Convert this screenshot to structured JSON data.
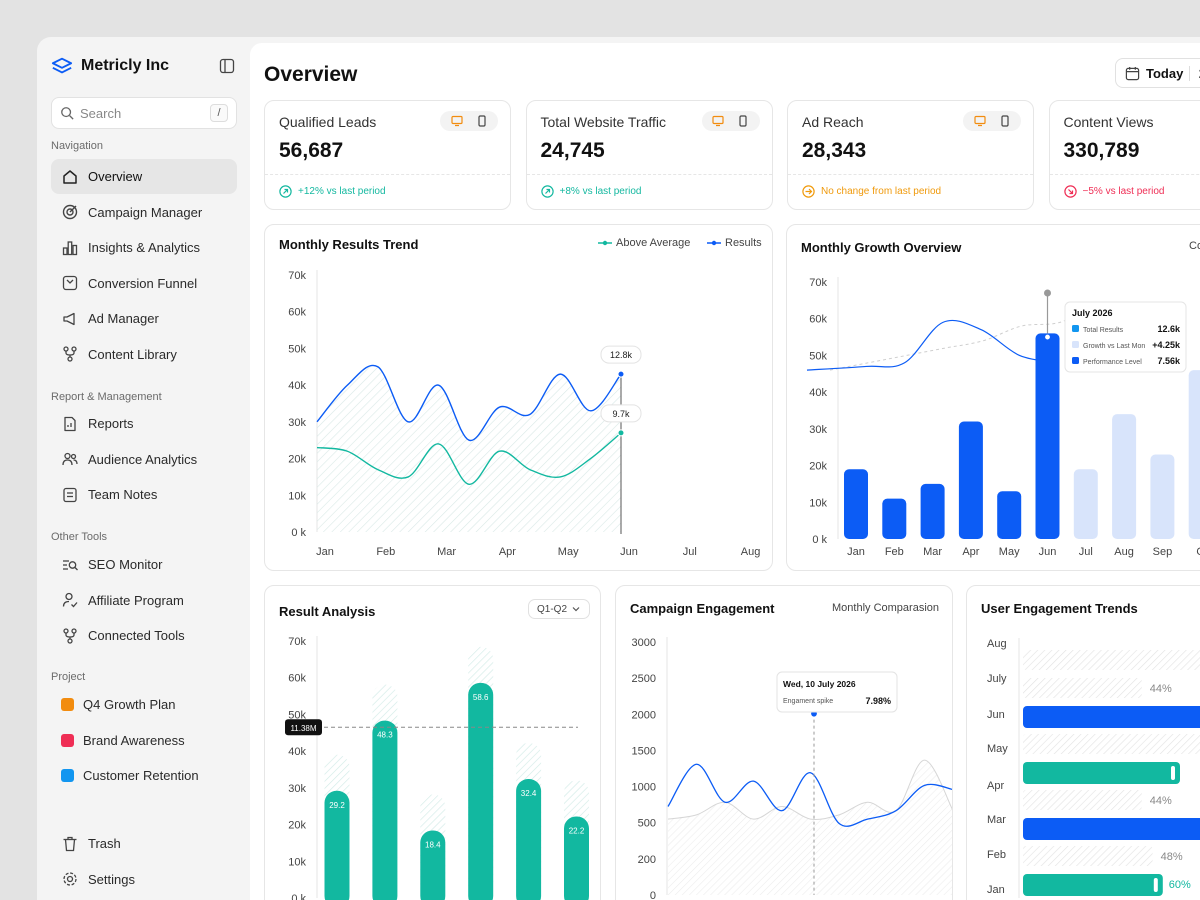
{
  "app": {
    "name": "Metricly Inc"
  },
  "search": {
    "placeholder": "Search",
    "shortcut": "/"
  },
  "sidebar": {
    "sections": {
      "navigation": "Navigation",
      "report": "Report & Management",
      "other": "Other Tools",
      "project": "Project"
    },
    "navigation": [
      {
        "label": "Overview",
        "icon": "home-icon",
        "active": true
      },
      {
        "label": "Campaign Manager",
        "icon": "target-icon"
      },
      {
        "label": "Insights & Analytics",
        "icon": "bar-chart-icon"
      },
      {
        "label": "Conversion Funnel",
        "icon": "funnel-icon"
      },
      {
        "label": "Ad Manager",
        "icon": "megaphone-icon"
      },
      {
        "label": "Content Library",
        "icon": "library-icon"
      }
    ],
    "report": [
      {
        "label": "Reports",
        "icon": "report-icon"
      },
      {
        "label": "Audience Analytics",
        "icon": "users-icon"
      },
      {
        "label": "Team Notes",
        "icon": "notes-icon"
      }
    ],
    "other": [
      {
        "label": "SEO Monitor",
        "icon": "seo-icon"
      },
      {
        "label": "Affiliate Program",
        "icon": "affiliate-icon"
      },
      {
        "label": "Connected Tools",
        "icon": "connect-icon"
      }
    ],
    "projects": [
      {
        "label": "Q4 Growth Plan",
        "color": "#f28c0f"
      },
      {
        "label": "Brand Awareness",
        "color": "#ef2e55"
      },
      {
        "label": "Customer Retention",
        "color": "#1296f0"
      }
    ],
    "bottom": [
      {
        "label": "Trash",
        "icon": "trash-icon"
      },
      {
        "label": "Settings",
        "icon": "gear-icon"
      }
    ]
  },
  "header": {
    "title": "Overview",
    "date_label": "Today",
    "date_extra": "2"
  },
  "kpis": [
    {
      "title": "Qualified Leads",
      "value": "56,687",
      "change": "+12% vs last period",
      "status": "up",
      "color": "#14b8a0"
    },
    {
      "title": "Total Website Traffic",
      "value": "24,745",
      "change": "+8% vs last period",
      "status": "up",
      "color": "#14b8a0"
    },
    {
      "title": "Ad Reach",
      "value": "28,343",
      "change": "No change from last period",
      "status": "flat",
      "color": "#f09a0c"
    },
    {
      "title": "Content Views",
      "value": "330,789",
      "change": "−5% vs last period",
      "status": "down",
      "color": "#ef2e55"
    }
  ],
  "colors": {
    "blue": "#0c5cf5",
    "light_blue": "#d8e4fb",
    "teal": "#12b8a0",
    "orange": "#f28c0f"
  },
  "chart_data": [
    {
      "id": "monthly-results-trend",
      "type": "line",
      "title": "Monthly Results Trend",
      "legend": [
        "Above Average",
        "Results"
      ],
      "categories": [
        "Jan",
        "Feb",
        "Mar",
        "Apr",
        "May",
        "Jun",
        "Jul",
        "Aug"
      ],
      "yticks": [
        "70k",
        "60k",
        "50k",
        "40k",
        "30k",
        "20k",
        "10k",
        "0 k"
      ],
      "ylim": [
        0,
        70000
      ],
      "series": [
        {
          "name": "Results",
          "x": [
            0,
            0.5,
            1,
            1.5,
            2,
            2.5,
            3,
            3.5,
            4,
            4.5,
            5
          ],
          "values": [
            30000,
            40000,
            45000,
            30000,
            40000,
            25000,
            34000,
            32000,
            43000,
            33000,
            43000
          ]
        },
        {
          "name": "Above Average",
          "x": [
            0,
            0.5,
            1,
            1.5,
            2,
            2.5,
            3,
            3.5,
            4,
            4.5,
            5
          ],
          "values": [
            23000,
            22000,
            17000,
            15000,
            24000,
            13000,
            22000,
            17000,
            15000,
            20000,
            27000
          ]
        }
      ],
      "annotations": [
        {
          "label": "12.8k",
          "series": "Results"
        },
        {
          "label": "9.7k",
          "series": "Above Average"
        }
      ]
    },
    {
      "id": "monthly-growth-overview",
      "type": "bar",
      "title": "Monthly Growth Overview",
      "extra_label": "Co",
      "categories": [
        "Jan",
        "Feb",
        "Mar",
        "Apr",
        "May",
        "Jun",
        "Jul",
        "Aug",
        "Sep",
        "Oct"
      ],
      "tick_labels": [
        "Jan",
        "Feb",
        "Mar",
        "Apr",
        "May",
        "Jun",
        "Jul",
        "Aug",
        "Sep",
        "O"
      ],
      "yticks": [
        "70k",
        "60k",
        "50k",
        "40k",
        "30k",
        "20k",
        "10k",
        "0 k"
      ],
      "ylim": [
        0,
        70000
      ],
      "values": [
        19000,
        11000,
        15000,
        32000,
        13000,
        56000,
        19000,
        34000,
        23000,
        46000
      ],
      "projected": [
        false,
        false,
        false,
        false,
        false,
        false,
        true,
        true,
        true,
        true
      ],
      "line_values": [
        46000,
        47000,
        48000,
        59000,
        57000,
        50000,
        48000
      ],
      "dashed_values": [
        46000,
        48000,
        50000,
        52000,
        54000,
        58000,
        59000,
        64000,
        62000,
        60000
      ],
      "tooltip": {
        "title": "July 2026",
        "rows": [
          {
            "label": "Total Results",
            "value": "12.6k",
            "color": "#1296f0"
          },
          {
            "label": "Growth vs Last Mon",
            "value": "+4.25k",
            "color": "#d8e4fb"
          },
          {
            "label": "Performance Level",
            "value": "7.56k",
            "color": "#0c5cf5"
          }
        ]
      }
    },
    {
      "id": "result-analysis",
      "type": "bar",
      "title": "Result Analysis",
      "filter": "Q1-Q2",
      "yticks": [
        "70k",
        "60k",
        "50k",
        "40k",
        "30k",
        "20k",
        "10k",
        "0 k"
      ],
      "ylim": [
        0,
        70000
      ],
      "values": [
        29.2,
        48.3,
        18.4,
        58.6,
        32.4,
        22.2
      ],
      "labels": [
        "29.2",
        "48.3",
        "18.4",
        "58.6",
        "32.4",
        "22.2"
      ],
      "reference": {
        "label": "11.38M",
        "value": 46500
      }
    },
    {
      "id": "campaign-engagement",
      "type": "line",
      "title": "Campaign Engagement",
      "subtitle": "Monthly Comparasion",
      "yticks": [
        "3000",
        "2500",
        "2000",
        "1500",
        "1000",
        "500",
        "200",
        "0"
      ],
      "ylim": [
        0,
        3000
      ],
      "values": [
        1050,
        1550,
        1100,
        1350,
        1000,
        1450,
        850,
        900,
        1000,
        1300,
        1250
      ],
      "tooltip": {
        "date": "Wed, 10 July 2026",
        "label": "Engament spike",
        "value": "7.98%"
      }
    },
    {
      "id": "user-engagement-trends",
      "type": "bar",
      "orientation": "horizontal",
      "title": "User Engagement Trends",
      "categories": [
        "Aug",
        "July",
        "Jun",
        "May",
        "Apr",
        "Mar",
        "Feb",
        "Jan"
      ],
      "rows": [
        {
          "label": "Aug",
          "style": "hatch",
          "value": null,
          "text": ""
        },
        {
          "label": "July",
          "style": "hatch",
          "value": 44,
          "text": "44%"
        },
        {
          "label": "Jun",
          "style": "blue",
          "value": null,
          "text": ""
        },
        {
          "label": "May",
          "style": "hatch",
          "value": null,
          "text": ""
        },
        {
          "label": "Apr",
          "style": "teal",
          "value": null,
          "text": ""
        },
        {
          "label": "",
          "style": "hatch",
          "value": 44,
          "text": "44%"
        },
        {
          "label": "Mar",
          "style": "blue",
          "value": null,
          "text": ""
        },
        {
          "label": "Feb",
          "style": "hatch",
          "value": 48,
          "text": "48%"
        },
        {
          "label": "Jan",
          "style": "teal",
          "value": 60,
          "text": "60%"
        }
      ]
    }
  ]
}
